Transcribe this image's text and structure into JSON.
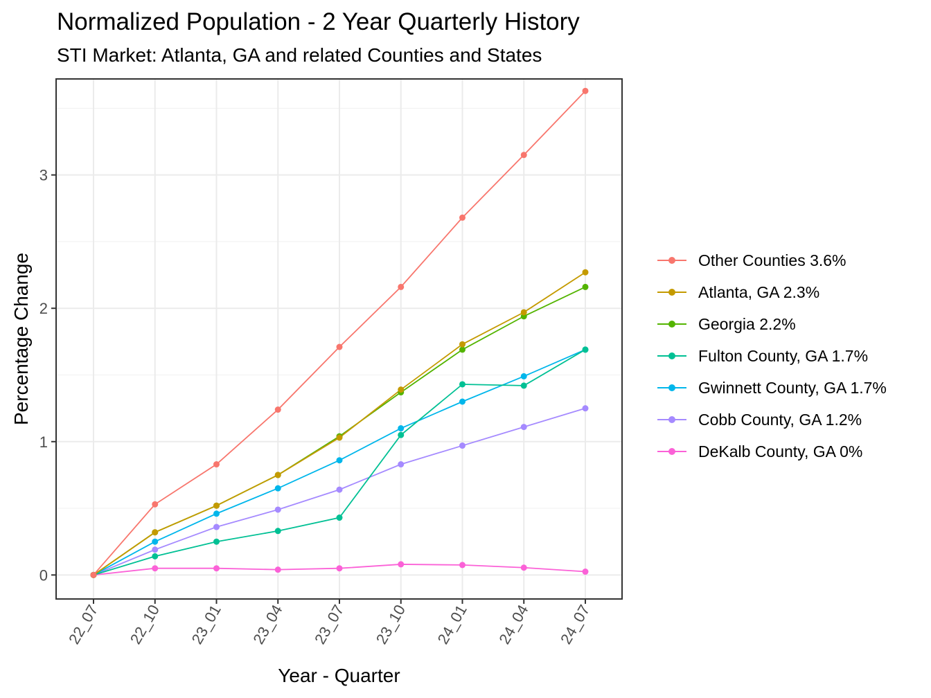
{
  "title": "Normalized Population - 2 Year Quarterly History",
  "subtitle": "STI Market: Atlanta, GA and related Counties and States",
  "chart_data": {
    "type": "line",
    "xlabel": "Year - Quarter",
    "ylabel": "Percentage Change",
    "categories": [
      "22_07",
      "22_10",
      "23_01",
      "23_04",
      "23_07",
      "23_10",
      "24_01",
      "24_04",
      "24_07"
    ],
    "ylim": [
      -0.18,
      3.72
    ],
    "yticks": [
      0,
      1,
      2,
      3
    ],
    "grid": true,
    "legend_position": "right",
    "series": [
      {
        "name": "Other Counties 3.6%",
        "color": "#F8766D",
        "values": [
          0,
          0.53,
          0.83,
          1.24,
          1.71,
          2.16,
          2.68,
          3.15,
          3.63
        ]
      },
      {
        "name": "Atlanta, GA 2.3%",
        "color": "#C49A00",
        "values": [
          0,
          0.32,
          0.52,
          0.75,
          1.03,
          1.39,
          1.73,
          1.97,
          2.27
        ]
      },
      {
        "name": "Georgia 2.2%",
        "color": "#53B400",
        "values": [
          0,
          0.32,
          0.52,
          0.75,
          1.04,
          1.37,
          1.69,
          1.94,
          2.16
        ]
      },
      {
        "name": "Fulton County, GA 1.7%",
        "color": "#00C094",
        "values": [
          0,
          0.14,
          0.25,
          0.33,
          0.43,
          1.05,
          1.43,
          1.42,
          1.69
        ]
      },
      {
        "name": "Gwinnett County, GA 1.7%",
        "color": "#00B6EB",
        "values": [
          0,
          0.25,
          0.46,
          0.65,
          0.86,
          1.1,
          1.3,
          1.49,
          1.69
        ]
      },
      {
        "name": "Cobb County, GA 1.2%",
        "color": "#A58AFF",
        "values": [
          0,
          0.19,
          0.36,
          0.49,
          0.64,
          0.83,
          0.97,
          1.11,
          1.25
        ]
      },
      {
        "name": "DeKalb County, GA 0%",
        "color": "#FB61D7",
        "values": [
          0,
          0.05,
          0.05,
          0.04,
          0.05,
          0.08,
          0.075,
          0.055,
          0.025
        ]
      }
    ]
  }
}
